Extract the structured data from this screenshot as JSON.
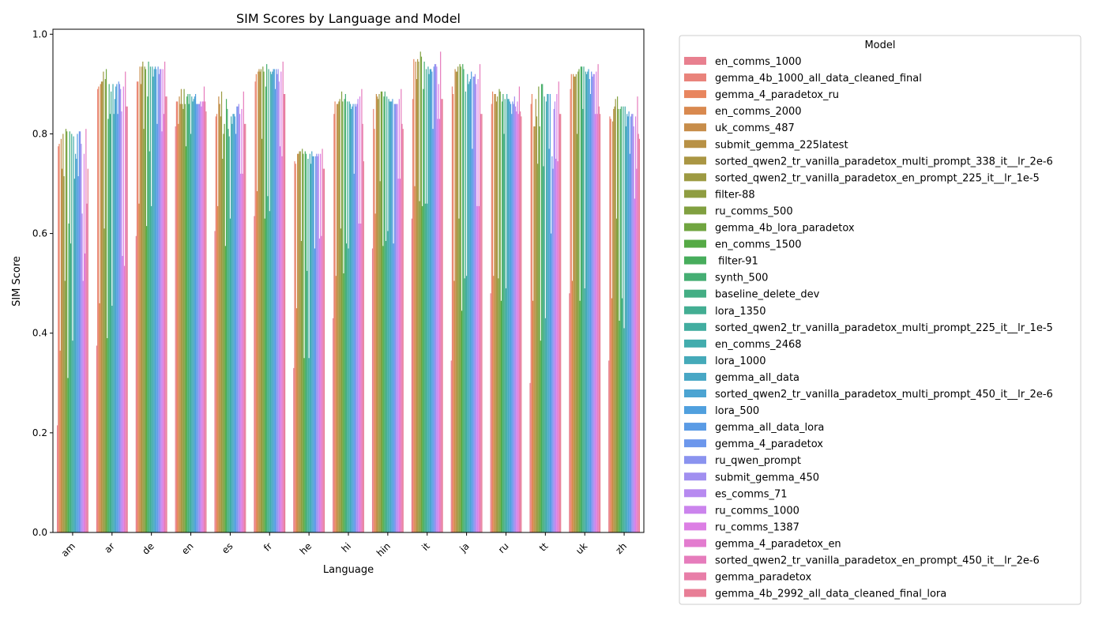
{
  "chart_data": {
    "type": "bar",
    "title": "SIM Scores by Language and Model",
    "xlabel": "Language",
    "ylabel": "SIM Score",
    "ylim": [
      0,
      1.01
    ],
    "yticks": [
      "0.0",
      "0.2",
      "0.4",
      "0.6",
      "0.8",
      "1.0"
    ],
    "grid": false,
    "legend": {
      "title": "Model",
      "placement": "outside-right"
    },
    "categories": [
      "am",
      "ar",
      "de",
      "en",
      "es",
      "fr",
      "he",
      "hi",
      "hin",
      "it",
      "ja",
      "ru",
      "tt",
      "uk",
      "zh"
    ],
    "series": [
      {
        "name": "en_comms_1000",
        "color": "#e8808f",
        "values": [
          0.215,
          0.375,
          0.595,
          0.815,
          0.605,
          0.635,
          0.33,
          0.43,
          0.57,
          0.63,
          0.345,
          0.48,
          0.3,
          0.48,
          0.345
        ]
      },
      {
        "name": "gemma_4b_1000_all_data_cleaned_final",
        "color": "#e9837b",
        "values": [
          0.775,
          0.89,
          0.905,
          0.865,
          0.835,
          0.905,
          0.745,
          0.84,
          0.85,
          0.87,
          0.895,
          0.86,
          0.86,
          0.89,
          0.835
        ]
      },
      {
        "name": "gemma_4_paradetox_ru",
        "color": "#e8855e",
        "values": [
          0.78,
          0.895,
          0.905,
          0.865,
          0.84,
          0.92,
          0.74,
          0.865,
          0.81,
          0.95,
          0.88,
          0.885,
          0.88,
          0.92,
          0.83
        ]
      },
      {
        "name": "en_comms_2000",
        "color": "#d9894f",
        "values": [
          0.365,
          0.46,
          0.66,
          0.82,
          0.655,
          0.685,
          0.45,
          0.515,
          0.64,
          0.695,
          0.505,
          0.515,
          0.465,
          0.505,
          0.47
        ]
      },
      {
        "name": "uk_comms_487",
        "color": "#c78d4a",
        "values": [
          0.79,
          0.9,
          0.935,
          0.875,
          0.875,
          0.925,
          0.76,
          0.86,
          0.88,
          0.945,
          0.93,
          0.88,
          0.815,
          0.92,
          0.825
        ]
      },
      {
        "name": "submit_gemma_225latest",
        "color": "#b89145",
        "values": [
          0.73,
          0.905,
          0.9,
          0.86,
          0.86,
          0.93,
          0.76,
          0.86,
          0.875,
          0.91,
          0.925,
          0.88,
          0.815,
          0.915,
          0.85
        ]
      },
      {
        "name": "sorted_qwen2_tr_vanilla_paradetox_multi_prompt_338_it__lr_2e-6",
        "color": "#aa9643",
        "values": [
          0.8,
          0.905,
          0.935,
          0.89,
          0.835,
          0.925,
          0.765,
          0.865,
          0.87,
          0.95,
          0.925,
          0.865,
          0.87,
          0.915,
          0.855
        ]
      },
      {
        "name": "sorted_qwen2_tr_vanilla_paradetox_en_prompt_225_it__lr_1e-5",
        "color": "#9d9a42",
        "values": [
          0.715,
          0.925,
          0.945,
          0.86,
          0.885,
          0.93,
          0.765,
          0.87,
          0.88,
          0.945,
          0.935,
          0.875,
          0.835,
          0.92,
          0.87
        ]
      },
      {
        "name": "filter-88",
        "color": "#8f9d41",
        "values": [
          0.505,
          0.61,
          0.81,
          0.85,
          0.75,
          0.79,
          0.585,
          0.61,
          0.705,
          0.665,
          0.63,
          0.51,
          0.74,
          0.8,
          0.63
        ]
      },
      {
        "name": "ru_comms_500",
        "color": "#81a040",
        "values": [
          0.81,
          0.91,
          0.935,
          0.89,
          0.8,
          0.935,
          0.77,
          0.885,
          0.885,
          0.965,
          0.94,
          0.89,
          0.895,
          0.925,
          0.875
        ]
      },
      {
        "name": "gemma_4b_lora_paradetox",
        "color": "#70a540",
        "values": [
          0.805,
          0.93,
          0.93,
          0.86,
          0.82,
          0.925,
          0.76,
          0.865,
          0.885,
          0.955,
          0.935,
          0.885,
          0.815,
          0.93,
          0.85
        ]
      },
      {
        "name": "en_comms_1500",
        "color": "#55aa45",
        "values": [
          0.31,
          0.39,
          0.615,
          0.775,
          0.575,
          0.63,
          0.35,
          0.52,
          0.575,
          0.655,
          0.445,
          0.465,
          0.385,
          0.465,
          0.425
        ]
      },
      {
        "name": " filter-91",
        "color": "#47ad5c",
        "values": [
          0.62,
          0.83,
          0.875,
          0.875,
          0.87,
          0.895,
          0.765,
          0.87,
          0.875,
          0.89,
          0.94,
          0.865,
          0.9,
          0.935,
          0.85
        ]
      },
      {
        "name": "synth_500",
        "color": "#45ae73",
        "values": [
          0.805,
          0.9,
          0.945,
          0.88,
          0.85,
          0.94,
          0.76,
          0.88,
          0.885,
          0.945,
          0.93,
          0.88,
          0.9,
          0.935,
          0.855
        ]
      },
      {
        "name": "baseline_delete_dev",
        "color": "#44ae84",
        "values": [
          0.58,
          0.84,
          0.765,
          0.86,
          0.81,
          0.675,
          0.525,
          0.58,
          0.585,
          0.66,
          0.51,
          0.8,
          0.735,
          0.85,
          0.47
        ]
      },
      {
        "name": "lora_1350",
        "color": "#43ae93",
        "values": [
          0.8,
          0.885,
          0.935,
          0.88,
          0.795,
          0.93,
          0.75,
          0.865,
          0.875,
          0.93,
          0.885,
          0.87,
          0.875,
          0.935,
          0.855
        ]
      },
      {
        "name": "sorted_qwen2_tr_vanilla_paradetox_multi_prompt_225_it__lr_1e-5",
        "color": "#42ada0",
        "values": [
          0.385,
          0.455,
          0.655,
          0.8,
          0.63,
          0.645,
          0.35,
          0.57,
          0.605,
          0.66,
          0.515,
          0.49,
          0.43,
          0.49,
          0.41
        ]
      },
      {
        "name": "en_comms_2468",
        "color": "#42acad",
        "values": [
          0.795,
          0.9,
          0.935,
          0.875,
          0.835,
          0.925,
          0.76,
          0.865,
          0.87,
          0.935,
          0.92,
          0.88,
          0.865,
          0.925,
          0.855
        ]
      },
      {
        "name": "lora_1000",
        "color": "#45aab9",
        "values": [
          0.71,
          0.84,
          0.915,
          0.865,
          0.82,
          0.92,
          0.74,
          0.86,
          0.865,
          0.92,
          0.9,
          0.87,
          0.88,
          0.92,
          0.815
        ]
      },
      {
        "name": "gemma_all_data",
        "color": "#48a7c5",
        "values": [
          0.76,
          0.87,
          0.93,
          0.87,
          0.84,
          0.925,
          0.765,
          0.85,
          0.865,
          0.93,
          0.905,
          0.87,
          0.88,
          0.925,
          0.84
        ]
      },
      {
        "name": "sorted_qwen2_tr_vanilla_paradetox_multi_prompt_450_it__lr_2e-6",
        "color": "#4ca4d2",
        "values": [
          0.75,
          0.895,
          0.935,
          0.875,
          0.84,
          0.93,
          0.755,
          0.855,
          0.865,
          0.93,
          0.91,
          0.865,
          0.77,
          0.93,
          0.835
        ]
      },
      {
        "name": "lora_500",
        "color": "#50a0de",
        "values": [
          0.8,
          0.9,
          0.93,
          0.88,
          0.835,
          0.93,
          0.755,
          0.86,
          0.87,
          0.925,
          0.925,
          0.86,
          0.88,
          0.91,
          0.845
        ]
      },
      {
        "name": "gemma_all_data_lora",
        "color": "#5a9be5",
        "values": [
          0.715,
          0.84,
          0.82,
          0.86,
          0.8,
          0.89,
          0.57,
          0.72,
          0.58,
          0.81,
          0.77,
          0.84,
          0.6,
          0.88,
          0.76
        ]
      },
      {
        "name": "gemma_4_paradetox",
        "color": "#6c97ec",
        "values": [
          0.805,
          0.905,
          0.935,
          0.86,
          0.855,
          0.93,
          0.755,
          0.86,
          0.86,
          0.935,
          0.915,
          0.865,
          0.755,
          0.925,
          0.835
        ]
      },
      {
        "name": "ru_qwen_prompt",
        "color": "#8a93ef",
        "values": [
          0.805,
          0.9,
          0.92,
          0.86,
          0.855,
          0.92,
          0.76,
          0.855,
          0.86,
          0.94,
          0.915,
          0.86,
          0.73,
          0.915,
          0.84
        ]
      },
      {
        "name": "submit_gemma_450",
        "color": "#a18ff0",
        "values": [
          0.78,
          0.89,
          0.93,
          0.86,
          0.86,
          0.93,
          0.755,
          0.86,
          0.86,
          0.94,
          0.92,
          0.875,
          0.85,
          0.92,
          0.84
        ]
      },
      {
        "name": "es_comms_71",
        "color": "#b78af0",
        "values": [
          0.64,
          0.845,
          0.93,
          0.865,
          0.84,
          0.905,
          0.76,
          0.87,
          0.86,
          0.935,
          0.9,
          0.855,
          0.865,
          0.92,
          0.815
        ]
      },
      {
        "name": "ru_comms_1000",
        "color": "#cb84ed",
        "values": [
          0.505,
          0.555,
          0.805,
          0.855,
          0.72,
          0.775,
          0.59,
          0.62,
          0.71,
          0.83,
          0.655,
          0.845,
          0.75,
          0.84,
          0.67
        ]
      },
      {
        "name": "ru_comms_1387",
        "color": "#dc7fe4",
        "values": [
          0.76,
          0.895,
          0.93,
          0.865,
          0.85,
          0.925,
          0.76,
          0.875,
          0.87,
          0.9,
          0.91,
          0.865,
          0.88,
          0.925,
          0.835
        ]
      },
      {
        "name": "gemma_4_paradetox_en",
        "color": "#e37ccf",
        "values": [
          0.56,
          0.535,
          0.84,
          0.865,
          0.72,
          0.755,
          0.595,
          0.62,
          0.71,
          0.83,
          0.655,
          0.84,
          0.745,
          0.84,
          0.73
        ]
      },
      {
        "name": "sorted_qwen2_tr_vanilla_paradetox_en_prompt_450_it__lr_2e-6",
        "color": "#e67cbc",
        "values": [
          0.81,
          0.925,
          0.945,
          0.895,
          0.885,
          0.945,
          0.77,
          0.89,
          0.89,
          0.965,
          0.94,
          0.895,
          0.905,
          0.94,
          0.875
        ]
      },
      {
        "name": "gemma_paradetox",
        "color": "#e87ea8",
        "values": [
          0.66,
          0.855,
          0.875,
          0.865,
          0.82,
          0.88,
          0.73,
          0.82,
          0.82,
          0.87,
          0.84,
          0.845,
          0.84,
          0.855,
          0.8
        ]
      },
      {
        "name": "gemma_4b_2992_all_data_cleaned_final_lora",
        "color": "#e87e96",
        "values": [
          0.73,
          0.855,
          0.875,
          0.845,
          0.82,
          0.88,
          0.73,
          0.745,
          0.81,
          0.87,
          0.84,
          0.835,
          0.84,
          0.84,
          0.79
        ]
      }
    ]
  }
}
